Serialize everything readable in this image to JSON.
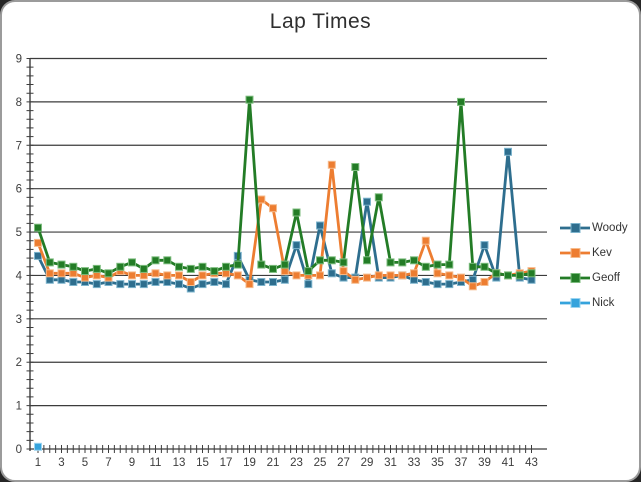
{
  "window": {
    "background": "#262626",
    "panel_background": "#ffffff",
    "panel_border": "#9b9b9b",
    "gridline_color": "#3c3c3c",
    "tick_label_color": "#3d3d3d"
  },
  "chart_data": {
    "type": "line",
    "title": "Lap Times",
    "xlabel": "",
    "ylabel": "",
    "grid": true,
    "legend_position": "right",
    "x_axis": {
      "min": 1,
      "max": 43,
      "minor_tick_step": 0.5,
      "tick_labels": [
        "1",
        "3",
        "5",
        "7",
        "9",
        "11",
        "13",
        "15",
        "17",
        "19",
        "21",
        "23",
        "25",
        "27",
        "29",
        "31",
        "33",
        "35",
        "37",
        "39",
        "41",
        "43"
      ],
      "label_step": 2
    },
    "y_axis": {
      "min": 0,
      "max": 9,
      "major_step": 1,
      "minor_step": 0.2,
      "tick_labels": [
        "0",
        "1",
        "2",
        "3",
        "4",
        "5",
        "6",
        "7",
        "8",
        "9"
      ]
    },
    "series": [
      {
        "name": "Woody",
        "color": "#2E6E8E",
        "marker_border": "#7DB4CD",
        "values": [
          4.45,
          3.9,
          3.9,
          3.85,
          3.85,
          3.8,
          3.85,
          3.8,
          3.8,
          3.8,
          3.85,
          3.85,
          3.8,
          3.7,
          3.8,
          3.85,
          3.8,
          4.45,
          3.9,
          3.85,
          3.85,
          3.9,
          4.7,
          3.8,
          5.15,
          4.05,
          3.95,
          3.95,
          5.7,
          3.95,
          3.95,
          4.0,
          3.9,
          3.85,
          3.8,
          3.8,
          3.85,
          3.9,
          4.7,
          3.95,
          6.85,
          3.95,
          3.9
        ]
      },
      {
        "name": "Kev",
        "color": "#ED7D31",
        "marker_border": "#F6BB8C",
        "values": [
          4.75,
          4.05,
          4.05,
          4.05,
          3.95,
          4.0,
          3.95,
          4.1,
          4.0,
          4.0,
          4.05,
          4.0,
          4.0,
          3.85,
          4.0,
          4.05,
          4.05,
          4.0,
          3.8,
          5.75,
          5.55,
          4.1,
          4.0,
          4.0,
          4.0,
          6.55,
          4.1,
          3.9,
          3.95,
          4.0,
          4.0,
          4.0,
          4.05,
          4.8,
          4.05,
          4.0,
          3.95,
          3.75,
          3.85,
          4.05,
          4.0,
          4.05,
          4.1
        ]
      },
      {
        "name": "Geoff",
        "color": "#237C26",
        "marker_border": "#7CBC7E",
        "values": [
          5.1,
          4.3,
          4.25,
          4.2,
          4.1,
          4.15,
          4.05,
          4.2,
          4.3,
          4.15,
          4.35,
          4.35,
          4.2,
          4.15,
          4.2,
          4.1,
          4.2,
          4.25,
          8.05,
          4.25,
          4.15,
          4.25,
          5.45,
          4.1,
          4.35,
          4.35,
          4.3,
          6.5,
          4.35,
          5.8,
          4.3,
          4.3,
          4.35,
          4.2,
          4.25,
          4.25,
          8.0,
          4.2,
          4.2,
          4.05,
          4.0,
          4.0,
          4.05
        ]
      },
      {
        "name": "Nick",
        "color": "#35A3DC",
        "marker_border": "#9BD4F0",
        "values": [
          0.05
        ]
      }
    ]
  }
}
